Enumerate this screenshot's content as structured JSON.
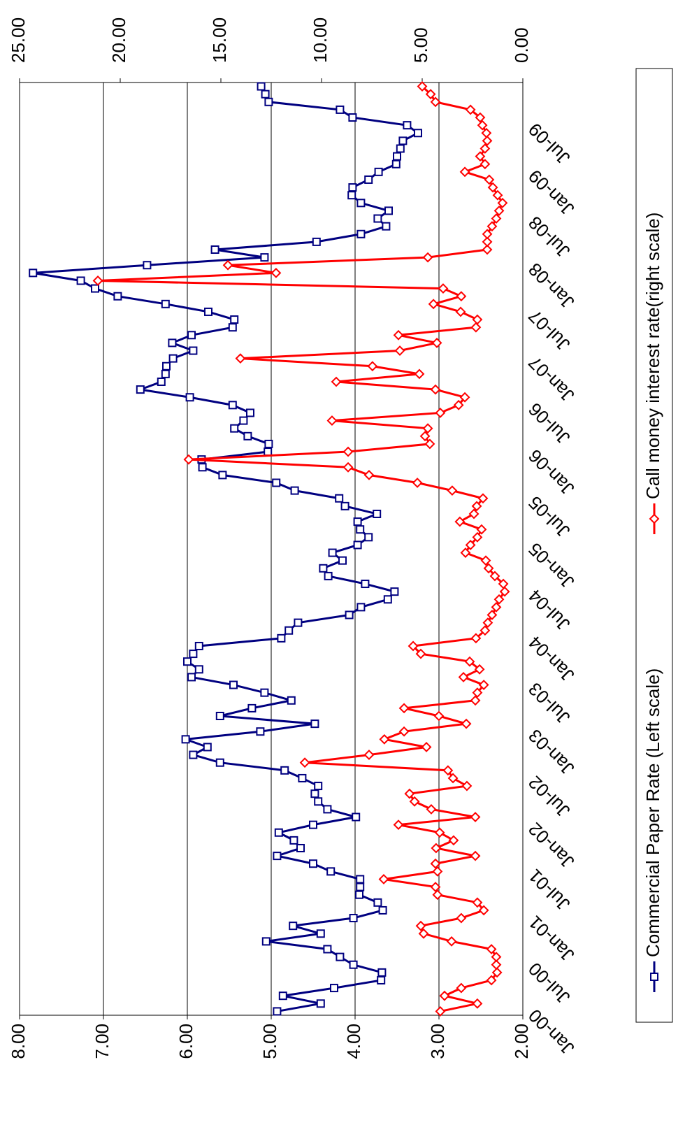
{
  "chart_data": {
    "type": "line",
    "categories": [
      "Jan-00",
      null,
      null,
      null,
      null,
      null,
      "Jul-00",
      null,
      null,
      null,
      null,
      null,
      "Jan-01",
      null,
      null,
      null,
      null,
      null,
      "Jul-01",
      null,
      null,
      null,
      null,
      null,
      "Jan-02",
      null,
      null,
      null,
      null,
      null,
      "Jul-02",
      null,
      null,
      null,
      null,
      null,
      "Jan-03",
      null,
      null,
      null,
      null,
      null,
      "Jul-03",
      null,
      null,
      null,
      null,
      null,
      "Jan-04",
      null,
      null,
      null,
      null,
      null,
      "Jul-04",
      null,
      null,
      null,
      null,
      null,
      "Jan-05",
      null,
      null,
      null,
      null,
      null,
      "Jul-05",
      null,
      null,
      null,
      null,
      null,
      "Jan-06",
      null,
      null,
      null,
      null,
      null,
      "Jul-06",
      null,
      null,
      null,
      null,
      null,
      "Jan-07",
      null,
      null,
      null,
      null,
      null,
      "Jul-07",
      null,
      null,
      null,
      null,
      null,
      "Jan-08",
      null,
      null,
      null,
      null,
      null,
      "Jul-08",
      null,
      null,
      null,
      null,
      null,
      "Jan-09",
      null,
      null,
      null,
      null,
      null,
      "Jul-09",
      null,
      null,
      null,
      null,
      null
    ],
    "series": [
      {
        "name": "Commercial Paper Rate (Left scale)",
        "color": "#000080",
        "marker": "square",
        "values": [
          4.93,
          4.41,
          4.86,
          4.25,
          3.69,
          3.68,
          4.02,
          4.18,
          4.33,
          5.06,
          4.41,
          4.74,
          4.02,
          3.67,
          3.73,
          3.95,
          3.94,
          3.94,
          4.29,
          4.5,
          4.93,
          4.65,
          4.73,
          4.91,
          4.5,
          3.99,
          4.33,
          4.44,
          4.48,
          4.44,
          4.63,
          4.84,
          5.61,
          5.93,
          5.76,
          6.02,
          5.13,
          4.48,
          5.61,
          5.23,
          4.76,
          5.08,
          5.45,
          5.95,
          5.86,
          6.0,
          5.93,
          5.86,
          4.88,
          4.79,
          4.68,
          4.07,
          3.93,
          3.61,
          3.53,
          3.88,
          4.32,
          4.38,
          4.15,
          4.27,
          3.97,
          3.84,
          3.94,
          3.97,
          3.74,
          4.12,
          4.19,
          4.72,
          4.94,
          5.58,
          5.82,
          5.83,
          5.04,
          5.03,
          5.28,
          5.44,
          5.33,
          5.25,
          5.46,
          5.97,
          6.56,
          6.31,
          6.26,
          6.25,
          6.17,
          5.93,
          6.18,
          5.95,
          5.46,
          5.44,
          5.75,
          6.26,
          6.83,
          7.1,
          7.27,
          7.84,
          6.48,
          5.08,
          5.67,
          4.46,
          3.93,
          3.63,
          3.73,
          3.6,
          3.93,
          4.04,
          4.03,
          3.84,
          3.72,
          3.51,
          3.5,
          3.46,
          3.43,
          3.25,
          3.38,
          4.03,
          4.18,
          5.03,
          5.07,
          5.12
        ]
      },
      {
        "name": "Call money interest rate(right scale)",
        "color": "#ff0000",
        "marker": "diamond",
        "axis": "y2",
        "values": [
          4.1,
          2.26,
          3.89,
          3.06,
          1.56,
          1.28,
          1.32,
          1.32,
          1.56,
          3.54,
          4.93,
          5.07,
          3.06,
          1.94,
          2.26,
          4.24,
          4.34,
          6.91,
          4.24,
          4.34,
          2.36,
          4.31,
          3.44,
          4.13,
          6.18,
          2.36,
          4.55,
          5.38,
          5.63,
          2.78,
          3.47,
          3.72,
          10.83,
          7.64,
          4.79,
          6.88,
          5.9,
          2.81,
          4.17,
          5.9,
          2.36,
          2.26,
          1.94,
          2.95,
          2.15,
          2.64,
          5.07,
          5.45,
          2.33,
          1.88,
          1.74,
          1.53,
          1.32,
          1.18,
          0.9,
          0.97,
          1.39,
          1.7,
          1.84,
          2.85,
          2.6,
          2.26,
          2.05,
          3.13,
          2.43,
          2.29,
          1.98,
          3.51,
          5.24,
          7.64,
          8.68,
          16.6,
          8.68,
          4.62,
          4.86,
          4.72,
          9.48,
          4.1,
          3.19,
          2.88,
          4.34,
          9.27,
          5.14,
          7.47,
          14.03,
          6.11,
          4.27,
          6.18,
          2.33,
          2.26,
          3.09,
          4.44,
          3.06,
          3.96,
          21.11,
          12.26,
          14.65,
          4.72,
          1.77,
          1.77,
          1.77,
          1.53,
          1.32,
          1.18,
          1.01,
          1.25,
          1.49,
          1.67,
          2.88,
          1.88,
          2.12,
          1.88,
          1.77,
          1.81,
          2.01,
          2.12,
          2.6,
          4.34,
          4.58,
          5.0
        ]
      }
    ],
    "ylim": [
      2,
      8
    ],
    "yticks": [
      {
        "value": 2,
        "label": "2.00"
      },
      {
        "value": 3,
        "label": "3.00"
      },
      {
        "value": 4,
        "label": "4.00"
      },
      {
        "value": 5,
        "label": "5.00"
      },
      {
        "value": 6,
        "label": "6.00"
      },
      {
        "value": 7,
        "label": "7.00"
      },
      {
        "value": 8,
        "label": "8.00"
      }
    ],
    "y2lim": [
      0,
      25
    ],
    "y2ticks": [
      {
        "value": 0,
        "label": "0.00"
      },
      {
        "value": 5,
        "label": "5.00"
      },
      {
        "value": 10,
        "label": "10.00"
      },
      {
        "value": 15,
        "label": "15.00"
      },
      {
        "value": 20,
        "label": "20.00"
      },
      {
        "value": 25,
        "label": "25.00"
      }
    ],
    "grid": true,
    "legend": "bottom"
  }
}
